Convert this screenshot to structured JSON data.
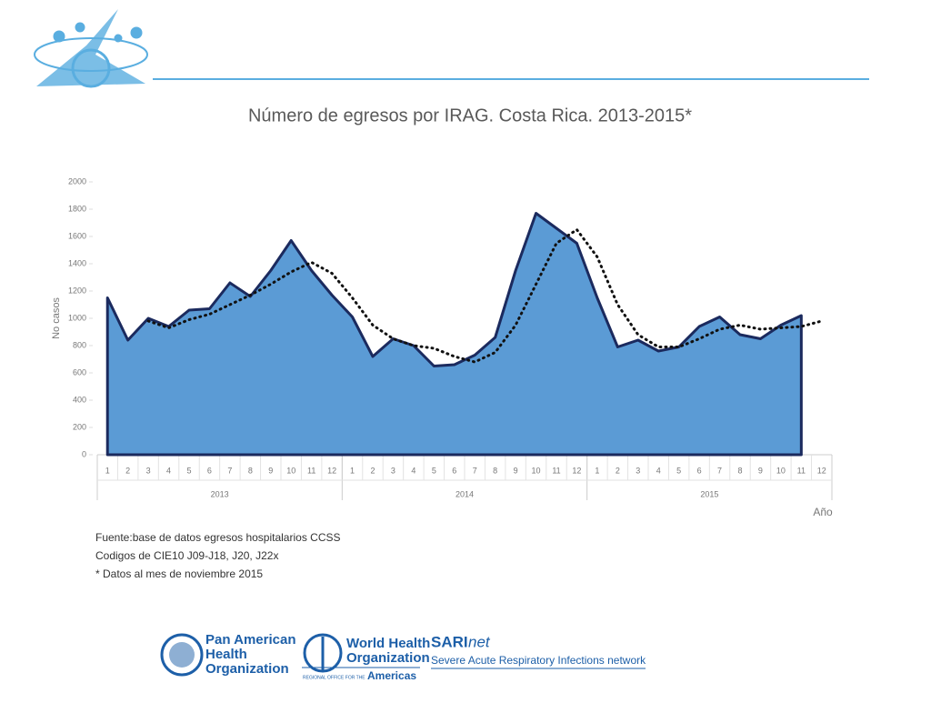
{
  "chart_data": {
    "type": "area",
    "title": "Número de egresos por IRAG.  Costa Rica. 2013-2015*",
    "y_label": "No casos",
    "x_label": "Año",
    "categories": [
      "1",
      "2",
      "3",
      "4",
      "5",
      "6",
      "7",
      "8",
      "9",
      "10",
      "11",
      "12",
      "1",
      "2",
      "3",
      "4",
      "5",
      "6",
      "7",
      "8",
      "9",
      "10",
      "11",
      "12",
      "1",
      "2",
      "3",
      "4",
      "5",
      "6",
      "7",
      "8",
      "9",
      "10",
      "11",
      "12"
    ],
    "groups": [
      "2013",
      "2014",
      "2015"
    ],
    "ylim": [
      0,
      2000
    ],
    "yticks": [
      0,
      200,
      400,
      600,
      800,
      1000,
      1200,
      1400,
      1600,
      1800,
      2000
    ],
    "series": [
      {
        "color": "#5b9bd5",
        "values": [
          1150,
          840,
          1000,
          940,
          1060,
          1070,
          1260,
          1160,
          1350,
          1570,
          1350,
          1170,
          1010,
          720,
          850,
          800,
          650,
          660,
          730,
          860,
          1350,
          1770,
          1660,
          1550,
          1150,
          790,
          840,
          760,
          790,
          940,
          1010,
          880,
          850,
          950,
          1020,
          null
        ]
      },
      {
        "color": "#111111",
        "values": [
          null,
          null,
          980,
          930,
          990,
          1030,
          1100,
          1170,
          1250,
          1340,
          1410,
          1330,
          1150,
          950,
          850,
          800,
          780,
          720,
          680,
          750,
          950,
          1250,
          1550,
          1650,
          1450,
          1100,
          880,
          790,
          790,
          850,
          920,
          950,
          920,
          930,
          940,
          980
        ]
      }
    ]
  },
  "notes": [
    "Fuente:base de datos egresos hospitalarios CCSS",
    "Codigos de CIE10 J09-J18, J20, J22x",
    "* Datos al mes de noviembre 2015"
  ],
  "footer": {
    "paho": [
      "Pan American",
      "Health",
      "Organization"
    ],
    "who": [
      "World Health",
      "Organization"
    ],
    "who_region": "REGIONAL OFFICE FOR THE",
    "who_americas": "Americas",
    "sari": "SARI",
    "sari_net": "net",
    "sari_sub": "Severe Acute Respiratory Infections network"
  }
}
